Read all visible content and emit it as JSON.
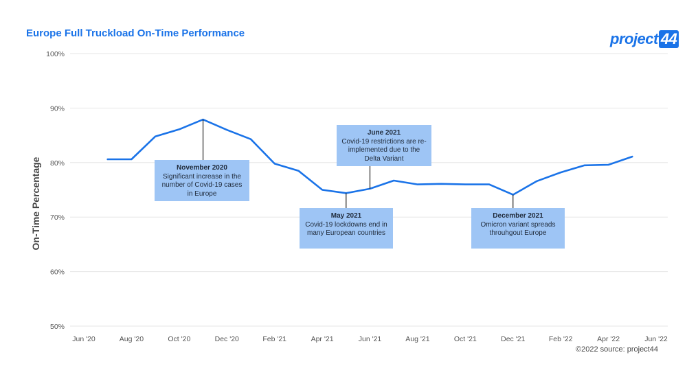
{
  "header": {
    "title": "Europe Full Truckload On-Time Performance",
    "logo_text": "project",
    "logo_num": "44"
  },
  "footer": {
    "source": "©2022 source: project44"
  },
  "annotations": [
    {
      "title": "November 2020",
      "text": "Significant increase in the number of Covid-19 cases in Europe"
    },
    {
      "title": "June 2021",
      "text": "Covid-19 restrictions are re-implemented due to the Delta Variant"
    },
    {
      "title": "May 2021",
      "text": "Covid-19 lockdowns end in many European countries"
    },
    {
      "title": "December 2021",
      "text": "Omicron variant spreads throuhgout Europe"
    }
  ],
  "colors": {
    "line": "#1a73e8",
    "note_bg": "#9ec5f5",
    "title": "#1a73e8"
  },
  "chart_data": {
    "type": "line",
    "title": "Europe Full Truckload On-Time Performance",
    "xlabel": "",
    "ylabel": "On-Time Percentage",
    "ylim": [
      50,
      100
    ],
    "y_ticks": [
      "50%",
      "60%",
      "70%",
      "80%",
      "90%",
      "100%"
    ],
    "x_ticks": [
      "Jun '20",
      "Aug '20",
      "Oct '20",
      "Dec '20",
      "Feb '21",
      "Apr '21",
      "Jun '21",
      "Aug '21",
      "Oct '21",
      "Dec '21",
      "Feb '22",
      "Apr '22",
      "Jun '22"
    ],
    "grid": true,
    "legend": "none",
    "series": [
      {
        "x": [
          "2020-07",
          "2020-08",
          "2020-09",
          "2020-10",
          "2020-11",
          "2020-12",
          "2021-01",
          "2021-02",
          "2021-03",
          "2021-04",
          "2021-05",
          "2021-06",
          "2021-07",
          "2021-08",
          "2021-09",
          "2021-10",
          "2021-11",
          "2021-12",
          "2022-01",
          "2022-02",
          "2022-03",
          "2022-04",
          "2022-05"
        ],
        "values": [
          80.6,
          80.6,
          84.8,
          86.1,
          87.9,
          86.0,
          84.3,
          79.8,
          78.5,
          75.0,
          74.4,
          75.2,
          76.7,
          76.0,
          76.1,
          76.0,
          76.0,
          74.1,
          76.6,
          78.2,
          79.5,
          79.6,
          81.1
        ]
      }
    ]
  }
}
